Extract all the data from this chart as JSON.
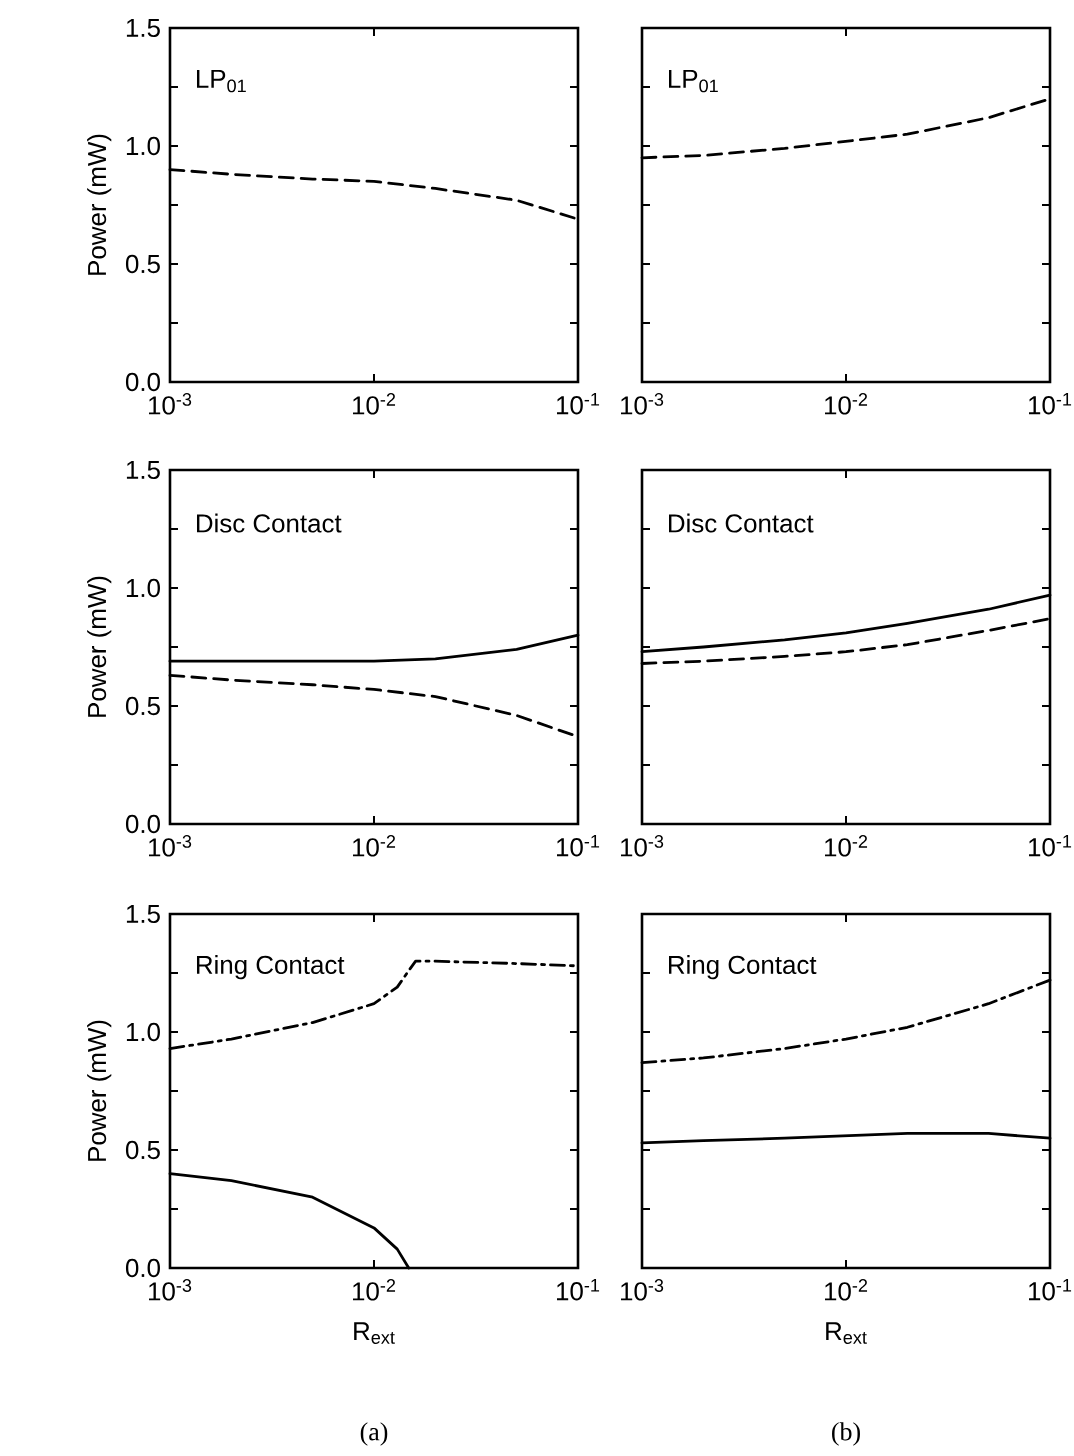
{
  "chart_data": [
    {
      "type": "line",
      "log": "x",
      "xlim": [
        0.001,
        0.1
      ],
      "ylim": [
        0,
        1.5
      ],
      "marker": "none",
      "ylabel": "Power (mW)",
      "xticks": [
        {
          "value": 0.001,
          "label": "10$^{-3}$"
        },
        {
          "value": 0.01,
          "label": "10$^{-2}$"
        },
        {
          "value": 0.1,
          "label": "10$^{-1}$"
        }
      ],
      "yticks": [
        {
          "value": 0,
          "label": "0.0"
        },
        {
          "value": 0.25,
          "label": null
        },
        {
          "value": 0.5,
          "label": "0.5"
        },
        {
          "value": 0.75,
          "label": null
        },
        {
          "value": 1.0,
          "label": "1.0"
        },
        {
          "value": 1.25,
          "label": null
        },
        {
          "value": 1.5,
          "label": "1.5"
        }
      ],
      "annotations": [
        "LP$_{01}$"
      ],
      "series": [
        {
          "color": "#000000",
          "line_style": "dashed",
          "x": [
            0.001,
            0.002,
            0.005,
            0.01,
            0.02,
            0.05,
            0.1
          ],
          "values": [
            0.9,
            0.88,
            0.86,
            0.85,
            0.82,
            0.77,
            0.69
          ]
        }
      ]
    },
    {
      "type": "line",
      "log": "x",
      "xlim": [
        0.001,
        0.1
      ],
      "ylim": [
        0,
        1.5
      ],
      "marker": "none",
      "tick_labels": "x",
      "xticks": [
        {
          "value": 0.001,
          "label": "10$^{-3}$"
        },
        {
          "value": 0.01,
          "label": "10$^{-2}$"
        },
        {
          "value": 0.1,
          "label": "10$^{-1}$"
        }
      ],
      "yticks": [
        {
          "value": 0,
          "label": null
        },
        {
          "value": 0.25,
          "label": null
        },
        {
          "value": 0.5,
          "label": null
        },
        {
          "value": 0.75,
          "label": null
        },
        {
          "value": 1.0,
          "label": null
        },
        {
          "value": 1.25,
          "label": null
        },
        {
          "value": 1.5,
          "label": null
        }
      ],
      "annotations": [
        "LP$_{01}$"
      ],
      "series": [
        {
          "color": "#000000",
          "line_style": "dashed",
          "x": [
            0.001,
            0.002,
            0.005,
            0.01,
            0.02,
            0.05,
            0.1
          ],
          "values": [
            0.95,
            0.96,
            0.99,
            1.02,
            1.05,
            1.12,
            1.2
          ]
        }
      ]
    },
    {
      "type": "line",
      "log": "x",
      "xlim": [
        0.001,
        0.1
      ],
      "ylim": [
        0,
        1.5
      ],
      "marker": "none",
      "ylabel": "Power (mW)",
      "xticks": [
        {
          "value": 0.001,
          "label": "10$^{-3}$"
        },
        {
          "value": 0.01,
          "label": "10$^{-2}$"
        },
        {
          "value": 0.1,
          "label": "10$^{-1}$"
        }
      ],
      "yticks": [
        {
          "value": 0,
          "label": "0.0"
        },
        {
          "value": 0.25,
          "label": null
        },
        {
          "value": 0.5,
          "label": "0.5"
        },
        {
          "value": 0.75,
          "label": null
        },
        {
          "value": 1.0,
          "label": "1.0"
        },
        {
          "value": 1.25,
          "label": null
        },
        {
          "value": 1.5,
          "label": "1.5"
        }
      ],
      "annotations": [
        "Disc Contact"
      ],
      "series": [
        {
          "color": "#000000",
          "line_style": "solid",
          "x": [
            0.001,
            0.002,
            0.005,
            0.01,
            0.02,
            0.05,
            0.1
          ],
          "values": [
            0.69,
            0.69,
            0.69,
            0.69,
            0.7,
            0.74,
            0.8
          ]
        },
        {
          "color": "#000000",
          "line_style": "dashed",
          "x": [
            0.001,
            0.002,
            0.005,
            0.01,
            0.02,
            0.05,
            0.1
          ],
          "values": [
            0.63,
            0.61,
            0.59,
            0.57,
            0.54,
            0.46,
            0.37
          ]
        }
      ]
    },
    {
      "type": "line",
      "log": "x",
      "xlim": [
        0.001,
        0.1
      ],
      "ylim": [
        0,
        1.5
      ],
      "marker": "none",
      "tick_labels": "x",
      "xticks": [
        {
          "value": 0.001,
          "label": "10$^{-3}$"
        },
        {
          "value": 0.01,
          "label": "10$^{-2}$"
        },
        {
          "value": 0.1,
          "label": "10$^{-1}$"
        }
      ],
      "yticks": [
        {
          "value": 0,
          "label": null
        },
        {
          "value": 0.25,
          "label": null
        },
        {
          "value": 0.5,
          "label": null
        },
        {
          "value": 0.75,
          "label": null
        },
        {
          "value": 1.0,
          "label": null
        },
        {
          "value": 1.25,
          "label": null
        },
        {
          "value": 1.5,
          "label": null
        }
      ],
      "annotations": [
        "Disc Contact"
      ],
      "series": [
        {
          "color": "#000000",
          "line_style": "solid",
          "x": [
            0.001,
            0.002,
            0.005,
            0.01,
            0.02,
            0.05,
            0.1
          ],
          "values": [
            0.73,
            0.75,
            0.78,
            0.81,
            0.85,
            0.91,
            0.97
          ]
        },
        {
          "color": "#000000",
          "line_style": "dashed",
          "x": [
            0.001,
            0.002,
            0.005,
            0.01,
            0.02,
            0.05,
            0.1
          ],
          "values": [
            0.68,
            0.69,
            0.71,
            0.73,
            0.76,
            0.82,
            0.87
          ]
        }
      ]
    },
    {
      "type": "line",
      "log": "x",
      "xlim": [
        0.001,
        0.1
      ],
      "ylim": [
        0,
        1.5
      ],
      "marker": "none",
      "ylabel": "Power (mW)",
      "xlabel": "R$_{ext}$",
      "xticks": [
        {
          "value": 0.001,
          "label": "10$^{-3}$"
        },
        {
          "value": 0.01,
          "label": "10$^{-2}$"
        },
        {
          "value": 0.1,
          "label": "10$^{-1}$"
        }
      ],
      "yticks": [
        {
          "value": 0,
          "label": "0.0"
        },
        {
          "value": 0.25,
          "label": null
        },
        {
          "value": 0.5,
          "label": "0.5"
        },
        {
          "value": 0.75,
          "label": null
        },
        {
          "value": 1.0,
          "label": "1.0"
        },
        {
          "value": 1.25,
          "label": null
        },
        {
          "value": 1.5,
          "label": "1.5"
        }
      ],
      "annotations": [
        "Ring Contact",
        "(a)"
      ],
      "series": [
        {
          "color": "#000000",
          "line_style": "dashdot",
          "x": [
            0.001,
            0.002,
            0.005,
            0.01,
            0.013,
            0.0148,
            0.016,
            0.02,
            0.05,
            0.1
          ],
          "values": [
            0.93,
            0.97,
            1.04,
            1.12,
            1.19,
            1.26,
            1.3,
            1.3,
            1.29,
            1.28
          ]
        },
        {
          "color": "#000000",
          "line_style": "solid",
          "x": [
            0.001,
            0.002,
            0.005,
            0.01,
            0.013,
            0.0148
          ],
          "values": [
            0.4,
            0.37,
            0.3,
            0.17,
            0.08,
            0
          ]
        }
      ]
    },
    {
      "type": "line",
      "log": "x",
      "xlim": [
        0.001,
        0.1
      ],
      "ylim": [
        0,
        1.5
      ],
      "marker": "none",
      "tick_labels": "x",
      "xlabel": "R$_{ext}$",
      "xticks": [
        {
          "value": 0.001,
          "label": "10$^{-3}$"
        },
        {
          "value": 0.01,
          "label": "10$^{-2}$"
        },
        {
          "value": 0.1,
          "label": "10$^{-1}$"
        }
      ],
      "yticks": [
        {
          "value": 0,
          "label": null
        },
        {
          "value": 0.25,
          "label": null
        },
        {
          "value": 0.5,
          "label": null
        },
        {
          "value": 0.75,
          "label": null
        },
        {
          "value": 1.0,
          "label": null
        },
        {
          "value": 1.25,
          "label": null
        },
        {
          "value": 1.5,
          "label": null
        }
      ],
      "annotations": [
        "Ring Contact",
        "(b)"
      ],
      "series": [
        {
          "color": "#000000",
          "line_style": "dashdot",
          "x": [
            0.001,
            0.002,
            0.005,
            0.01,
            0.02,
            0.05,
            0.1
          ],
          "values": [
            0.87,
            0.89,
            0.93,
            0.97,
            1.02,
            1.12,
            1.22
          ]
        },
        {
          "color": "#000000",
          "line_style": "solid",
          "x": [
            0.001,
            0.002,
            0.005,
            0.01,
            0.02,
            0.05,
            0.1
          ],
          "values": [
            0.53,
            0.54,
            0.55,
            0.56,
            0.57,
            0.57,
            0.55
          ]
        }
      ]
    }
  ]
}
